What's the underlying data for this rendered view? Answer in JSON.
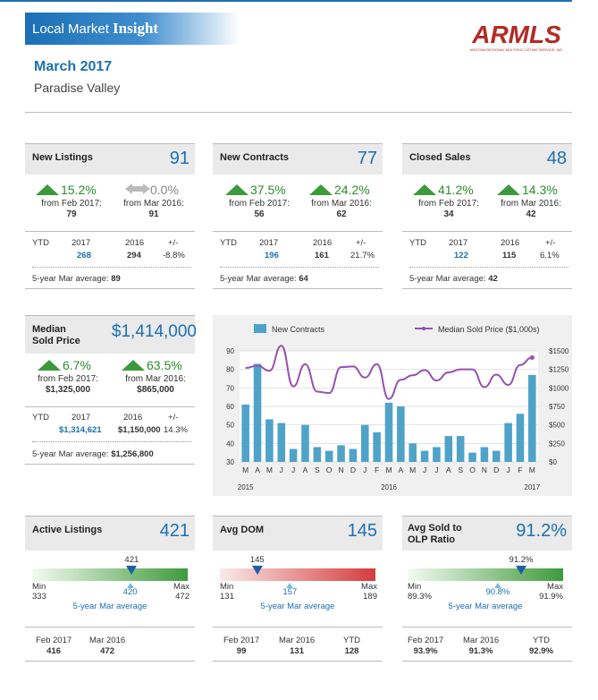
{
  "header": {
    "brand_prefix": "Local Market",
    "brand_emph": "Insight",
    "logo_text": "ARMLS",
    "logo_sub": "ARIZONA REGIONAL MULTIPLE LISTING SERVICE, INC.",
    "month": "March 2017",
    "area": "Paradise Valley"
  },
  "new_listings": {
    "title": "New Listings",
    "value": "91",
    "pct1": "15.2%",
    "pct2": "0.0%",
    "from1": "from Feb 2017:",
    "from1_val": "79",
    "from2": "from Mar 2016:",
    "from2_val": "91",
    "ytd": "YTD",
    "y1": "2017",
    "y2": "2016",
    "pm": "+/-",
    "v1": "268",
    "v2": "294",
    "vpm": "-8.8%",
    "avg": "5-year Mar average:",
    "avg_val": "89"
  },
  "new_contracts": {
    "title": "New Contracts",
    "value": "77",
    "pct1": "37.5%",
    "pct2": "24.2%",
    "from1": "from Feb 2017:",
    "from1_val": "56",
    "from2": "from Mar 2016:",
    "from2_val": "62",
    "ytd": "YTD",
    "y1": "2017",
    "y2": "2016",
    "pm": "+/-",
    "v1": "196",
    "v2": "161",
    "vpm": "21.7%",
    "avg": "5-year Mar average:",
    "avg_val": "64"
  },
  "closed_sales": {
    "title": "Closed Sales",
    "value": "48",
    "pct1": "41.2%",
    "pct2": "14.3%",
    "from1": "from Feb 2017:",
    "from1_val": "34",
    "from2": "from Mar 2016:",
    "from2_val": "42",
    "ytd": "YTD",
    "y1": "2017",
    "y2": "2016",
    "pm": "+/-",
    "v1": "122",
    "v2": "115",
    "vpm": "6.1%",
    "avg": "5-year Mar average:",
    "avg_val": "42"
  },
  "median_price": {
    "title1": "Median",
    "title2": "Sold Price",
    "value": "$1,414,000",
    "pct1": "6.7%",
    "pct2": "63.5%",
    "from1": "from Feb 2017:",
    "from1_val": "$1,325,000",
    "from2": "from Mar 2016:",
    "from2_val": "$865,000",
    "ytd": "YTD",
    "y1": "2017",
    "y2": "2016",
    "pm": "+/-",
    "v1": "$1,314,621",
    "v2": "$1,150,000",
    "vpm": "14.3%",
    "avg": "5-year Mar average:",
    "avg_val": "$1,256,800"
  },
  "active_listings": {
    "title": "Active Listings",
    "value": "421",
    "marker": "421",
    "min_label": "Min",
    "min": "333",
    "max_label": "Max",
    "max": "472",
    "avg_val": "420",
    "avg_label": "5-year Mar average",
    "marker_pos": 0.64,
    "avg_pos": 0.63,
    "c1": "Feb 2017",
    "c1v": "416",
    "c2": "Mar 2016",
    "c2v": "472"
  },
  "avg_dom": {
    "title": "Avg DOM",
    "value": "145",
    "marker": "145",
    "min_label": "Min",
    "min": "131",
    "max_label": "Max",
    "max": "189",
    "avg_val": "157",
    "avg_label": "5-year Mar average",
    "marker_pos": 0.24,
    "avg_pos": 0.45,
    "c1": "Feb 2017",
    "c1v": "99",
    "c2": "Mar 2016",
    "c2v": "131",
    "c3": "YTD",
    "c3v": "128"
  },
  "sold_olp": {
    "title1": "Avg Sold to",
    "title2": "OLP Ratio",
    "value": "91.2%",
    "marker": "91.2%",
    "min_label": "Min",
    "min": "89.3%",
    "max_label": "Max",
    "max": "91.9%",
    "avg_val": "90.8%",
    "avg_label": "5-year Mar average",
    "marker_pos": 0.73,
    "avg_pos": 0.58,
    "c1": "Feb 2017",
    "c1v": "93.9%",
    "c2": "Mar 2016",
    "c2v": "91.3%",
    "c3": "YTD",
    "c3v": "92.9%"
  },
  "colors": {
    "accent": "#1c6fb5",
    "up": "#2a8c2a",
    "bar": "#4fa3c9",
    "line": "#9552b0",
    "logo": "#b32b25"
  },
  "chart_data": {
    "type": "bar",
    "categories": [
      "M",
      "A",
      "M",
      "J",
      "J",
      "A",
      "S",
      "O",
      "N",
      "D",
      "J",
      "F",
      "M",
      "A",
      "M",
      "J",
      "J",
      "A",
      "S",
      "O",
      "N",
      "D",
      "J",
      "F",
      "M"
    ],
    "year_labels": [
      {
        "index": 0,
        "label": "2015"
      },
      {
        "index": 12,
        "label": "2016"
      },
      {
        "index": 24,
        "label": "2017"
      }
    ],
    "series": [
      {
        "name": "New Contracts",
        "type": "bar",
        "axis": "left",
        "values": [
          61,
          83,
          53,
          51,
          37,
          50,
          38,
          36,
          39,
          37,
          50,
          46,
          62,
          60,
          40,
          36,
          38,
          44,
          44,
          35,
          38,
          36,
          51,
          56,
          77
        ]
      },
      {
        "name": "Median Sold Price ($1,000s)",
        "type": "line",
        "axis": "right",
        "values": [
          1270,
          1300,
          1230,
          1570,
          1020,
          1320,
          950,
          930,
          1280,
          1290,
          1140,
          1320,
          850,
          1110,
          1170,
          1240,
          1100,
          1210,
          1250,
          1250,
          1010,
          1180,
          1040,
          1310,
          1410
        ]
      }
    ],
    "ylim_left": [
      30,
      90
    ],
    "yticks_left": [
      "30",
      "40",
      "50",
      "60",
      "70",
      "80",
      "90"
    ],
    "ylim_right": [
      0,
      1500
    ],
    "yticks_right": [
      "$0",
      "$250",
      "$500",
      "$750",
      "$1000",
      "$1250",
      "$1500"
    ],
    "legend": "top",
    "grid": true
  }
}
